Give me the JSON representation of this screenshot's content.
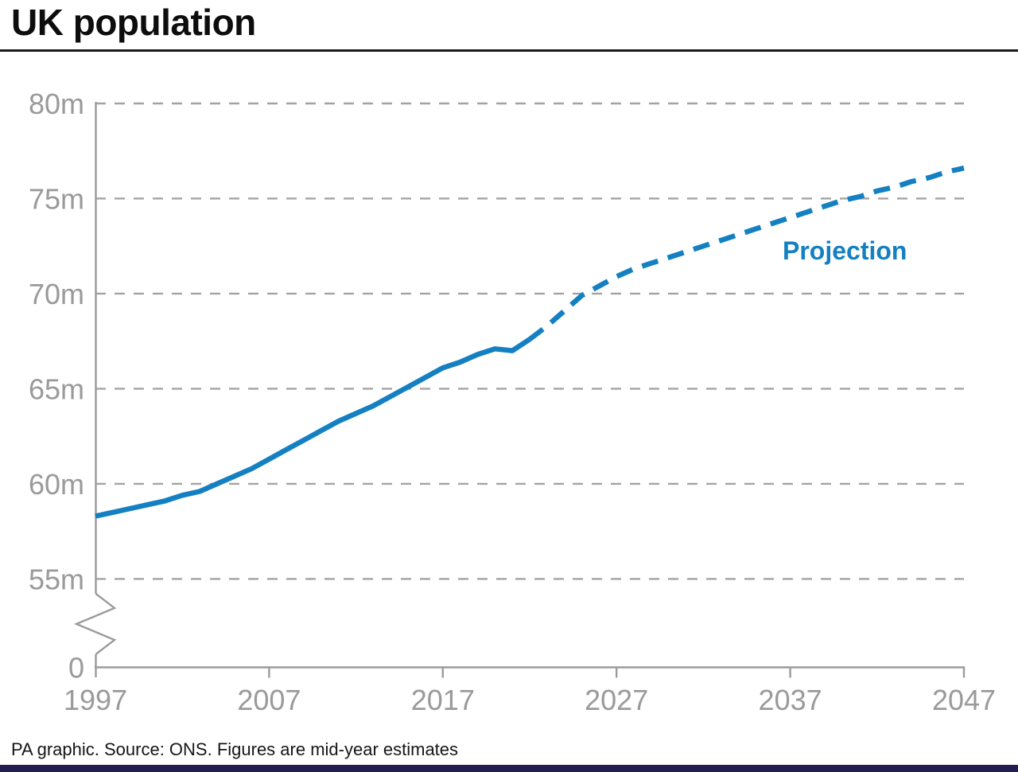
{
  "title": "UK population",
  "footer": {
    "source_line": "PA graphic. Source: ONS. Figures are mid-year estimates"
  },
  "colors": {
    "line_blue": "#1480c2",
    "axis_gray": "#9b9b9b",
    "grid_gray": "#a3a3a3",
    "label_gray": "#9a9a9a",
    "title_black": "#1a1a1a",
    "bottom_bar_navy": "#221e4f"
  },
  "chart_data": {
    "type": "line",
    "title": "UK population",
    "xlabel": "",
    "ylabel": "",
    "xlim": [
      1997,
      2047
    ],
    "ylim": [
      55,
      80
    ],
    "axis_break_between": [
      0,
      55
    ],
    "grid": "horizontal dashed",
    "x_ticks": [
      1997,
      2007,
      2017,
      2027,
      2037,
      2047
    ],
    "x_tick_labels": [
      "1997",
      "2007",
      "2017",
      "2027",
      "2037",
      "2047"
    ],
    "y_ticks": [
      80,
      75,
      70,
      65,
      60,
      55
    ],
    "y_tick_labels": [
      "80m",
      "75m",
      "70m",
      "65m",
      "60m",
      "55m"
    ],
    "y_zero_label": "0",
    "legend": {
      "projection_label": "Projection",
      "position": "right of dashed line"
    },
    "series": [
      {
        "name": "Mid-year estimates",
        "style": "solid",
        "points": [
          [
            1997,
            58.3
          ],
          [
            1998,
            58.5
          ],
          [
            1999,
            58.7
          ],
          [
            2000,
            58.9
          ],
          [
            2001,
            59.1
          ],
          [
            2002,
            59.4
          ],
          [
            2003,
            59.6
          ],
          [
            2004,
            60.0
          ],
          [
            2005,
            60.4
          ],
          [
            2006,
            60.8
          ],
          [
            2007,
            61.3
          ],
          [
            2008,
            61.8
          ],
          [
            2009,
            62.3
          ],
          [
            2010,
            62.8
          ],
          [
            2011,
            63.3
          ],
          [
            2012,
            63.7
          ],
          [
            2013,
            64.1
          ],
          [
            2014,
            64.6
          ],
          [
            2015,
            65.1
          ],
          [
            2016,
            65.6
          ],
          [
            2017,
            66.1
          ],
          [
            2018,
            66.4
          ],
          [
            2019,
            66.8
          ],
          [
            2020,
            67.1
          ],
          [
            2021,
            67.0
          ],
          [
            2022,
            67.6
          ]
        ]
      },
      {
        "name": "Projection",
        "style": "dashed",
        "points": [
          [
            2022,
            67.6
          ],
          [
            2023,
            68.3
          ],
          [
            2024,
            69.1
          ],
          [
            2025,
            69.9
          ],
          [
            2026,
            70.4
          ],
          [
            2027,
            70.9
          ],
          [
            2028,
            71.3
          ],
          [
            2029,
            71.6
          ],
          [
            2030,
            71.9
          ],
          [
            2031,
            72.2
          ],
          [
            2032,
            72.5
          ],
          [
            2033,
            72.8
          ],
          [
            2034,
            73.1
          ],
          [
            2035,
            73.4
          ],
          [
            2036,
            73.7
          ],
          [
            2037,
            74.0
          ],
          [
            2038,
            74.3
          ],
          [
            2039,
            74.6
          ],
          [
            2040,
            74.9
          ],
          [
            2041,
            75.1
          ],
          [
            2042,
            75.4
          ],
          [
            2043,
            75.6
          ],
          [
            2044,
            75.9
          ],
          [
            2045,
            76.1
          ],
          [
            2046,
            76.4
          ],
          [
            2047,
            76.6
          ]
        ]
      }
    ]
  }
}
